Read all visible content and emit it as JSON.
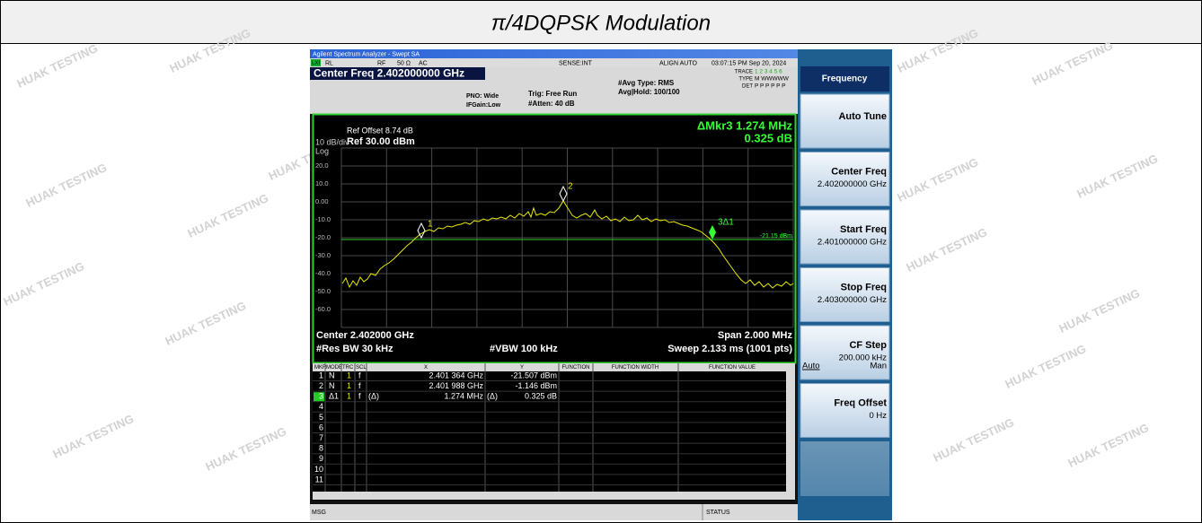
{
  "title": "π/4DQPSK Modulation",
  "watermark": "HUAK TESTING",
  "analyzer": {
    "window_title": "Agilent Spectrum Analyzer - Swept SA",
    "status_bar": {
      "lxi": "LXI",
      "rl": "RL",
      "rf": "RF",
      "impedance": "50 Ω",
      "coupling": "AC",
      "sense": "SENSE:INT",
      "align": "ALIGN AUTO",
      "time": "03:07:15 PM Sep 20, 2024"
    },
    "center_freq": "Center Freq 2.402000000 GHz",
    "pno": "PNO: Wide",
    "ifgain": "IFGain:Low",
    "trig": "Trig: Free Run",
    "atten": "#Atten: 40 dB",
    "avg_type": "#Avg Type: RMS",
    "avg_hold": "Avg|Hold: 100/100",
    "trace_info": {
      "trace": "TRACE",
      "trace_nums": "1 2 3 4 5 6",
      "type": "TYPE",
      "type_vals": "M WWWWW",
      "det": "DET",
      "det_vals": "P P P P P P"
    },
    "graph": {
      "ref_offset": "Ref Offset 8.74 dB",
      "scale": "10 dB/div",
      "ref_level": "Ref 30.00 dBm",
      "log": "Log",
      "delta_marker": "ΔMkr3 1.274 MHz",
      "delta_value": "0.325 dB",
      "y_labels": [
        "20.0",
        "10.0",
        "0.00",
        "-10.0",
        "-20.0",
        "-30.0",
        "-40.0",
        "-50.0",
        "-60.0"
      ],
      "display_line": "-21.15 dBm",
      "marker_labels": [
        "1",
        "2",
        "3Δ1"
      ]
    },
    "footer": {
      "center": "Center 2.402000 GHz",
      "span": "Span 2.000 MHz",
      "rbw": "#Res BW 30 kHz",
      "vbw": "#VBW 100 kHz",
      "sweep": "Sweep  2.133 ms (1001 pts)"
    },
    "marker_table": {
      "headers": [
        "MKR",
        "MODE",
        "TRC",
        "SCL",
        "X",
        "Y",
        "FUNCTION",
        "FUNCTION WIDTH",
        "FUNCTION VALUE"
      ],
      "rows": [
        {
          "mkr": "1",
          "mode": "N",
          "trc": "1",
          "scl": "f",
          "x": "2.401 364 GHz",
          "y": "-21.507 dBm"
        },
        {
          "mkr": "2",
          "mode": "N",
          "trc": "1",
          "scl": "f",
          "x": "2.401 988 GHz",
          "y": "-1.146 dBm"
        },
        {
          "mkr": "3",
          "mode": "Δ1",
          "trc": "1",
          "scl": "f",
          "x_ref": "(Δ)",
          "x": "1.274 MHz",
          "y_ref": "(Δ)",
          "y": "0.325 dB"
        },
        {
          "mkr": "4"
        },
        {
          "mkr": "5"
        },
        {
          "mkr": "6"
        },
        {
          "mkr": "7"
        },
        {
          "mkr": "8"
        },
        {
          "mkr": "9"
        },
        {
          "mkr": "10"
        },
        {
          "mkr": "11"
        }
      ]
    },
    "msg": "MSG",
    "status": "STATUS"
  },
  "softkeys": {
    "title": "Frequency",
    "keys": [
      {
        "label": "Auto Tune"
      },
      {
        "label": "Center Freq",
        "value": "2.402000000 GHz"
      },
      {
        "label": "Start Freq",
        "value": "2.401000000 GHz"
      },
      {
        "label": "Stop Freq",
        "value": "2.403000000 GHz"
      },
      {
        "label": "CF Step",
        "value": "200.000 kHz",
        "options": [
          "Auto",
          "Man"
        ]
      },
      {
        "label": "Freq Offset",
        "value": "0 Hz"
      }
    ]
  }
}
